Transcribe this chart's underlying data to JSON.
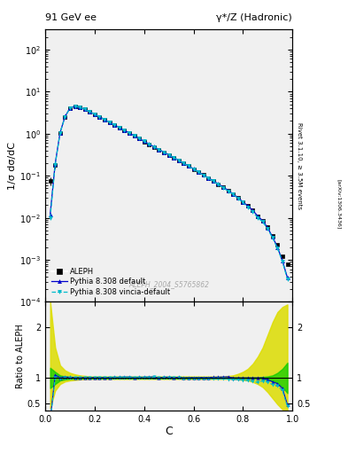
{
  "title_left": "91 GeV ee",
  "title_right": "γ*/Z (Hadronic)",
  "ylabel_main": "1/σ dσ/dC",
  "ylabel_ratio": "Ratio to ALEPH",
  "xlabel": "C",
  "right_label_main": "Rivet 3.1.10, ≥ 3.5M events",
  "right_label_ref": "[arXiv:1306.3436]",
  "watermark": "ALEPH_2004_S5765862",
  "legend": [
    "ALEPH",
    "Pythia 8.308 default",
    "Pythia 8.308 vincia-default"
  ],
  "aleph_x": [
    0.02,
    0.04,
    0.06,
    0.08,
    0.1,
    0.12,
    0.14,
    0.16,
    0.18,
    0.2,
    0.22,
    0.24,
    0.26,
    0.28,
    0.3,
    0.32,
    0.34,
    0.36,
    0.38,
    0.4,
    0.42,
    0.44,
    0.46,
    0.48,
    0.5,
    0.52,
    0.54,
    0.56,
    0.58,
    0.6,
    0.62,
    0.64,
    0.66,
    0.68,
    0.7,
    0.72,
    0.74,
    0.76,
    0.78,
    0.8,
    0.82,
    0.84,
    0.86,
    0.88,
    0.9,
    0.92,
    0.94,
    0.96,
    0.98
  ],
  "aleph_y": [
    0.075,
    0.18,
    1.05,
    2.5,
    4.0,
    4.5,
    4.2,
    3.8,
    3.3,
    2.9,
    2.5,
    2.15,
    1.85,
    1.6,
    1.38,
    1.18,
    1.02,
    0.88,
    0.76,
    0.65,
    0.56,
    0.48,
    0.42,
    0.36,
    0.31,
    0.27,
    0.23,
    0.2,
    0.17,
    0.145,
    0.123,
    0.104,
    0.088,
    0.075,
    0.063,
    0.053,
    0.044,
    0.037,
    0.03,
    0.024,
    0.019,
    0.015,
    0.011,
    0.0085,
    0.006,
    0.0038,
    0.00225,
    0.0012,
    0.0008
  ],
  "pythia_y": [
    0.012,
    0.19,
    1.06,
    2.55,
    4.05,
    4.52,
    4.22,
    3.82,
    3.32,
    2.92,
    2.52,
    2.17,
    1.87,
    1.62,
    1.4,
    1.2,
    1.04,
    0.89,
    0.77,
    0.66,
    0.57,
    0.49,
    0.42,
    0.365,
    0.315,
    0.272,
    0.233,
    0.2,
    0.171,
    0.146,
    0.124,
    0.105,
    0.089,
    0.076,
    0.064,
    0.054,
    0.045,
    0.037,
    0.03,
    0.024,
    0.019,
    0.015,
    0.011,
    0.0085,
    0.0058,
    0.0035,
    0.002,
    0.00095,
    0.00038
  ],
  "vincia_y": [
    0.01,
    0.18,
    1.04,
    2.52,
    4.02,
    4.5,
    4.2,
    3.8,
    3.3,
    2.9,
    2.5,
    2.16,
    1.86,
    1.61,
    1.39,
    1.19,
    1.03,
    0.885,
    0.765,
    0.655,
    0.565,
    0.487,
    0.418,
    0.362,
    0.312,
    0.269,
    0.231,
    0.198,
    0.169,
    0.144,
    0.122,
    0.103,
    0.087,
    0.074,
    0.062,
    0.052,
    0.043,
    0.036,
    0.029,
    0.023,
    0.018,
    0.014,
    0.01,
    0.008,
    0.0055,
    0.0033,
    0.0019,
    0.0009,
    0.00035
  ],
  "aleph_err": [
    0.015,
    0.03,
    0.05,
    0.1,
    0.12,
    0.12,
    0.11,
    0.1,
    0.08,
    0.07,
    0.06,
    0.05,
    0.04,
    0.035,
    0.03,
    0.025,
    0.02,
    0.017,
    0.015,
    0.013,
    0.011,
    0.009,
    0.008,
    0.007,
    0.006,
    0.005,
    0.004,
    0.0035,
    0.003,
    0.0025,
    0.002,
    0.0017,
    0.0014,
    0.0012,
    0.001,
    0.0008,
    0.0007,
    0.0006,
    0.0005,
    0.0004,
    0.0003,
    0.00025,
    0.0002,
    0.00015,
    0.00012,
    9e-05,
    7e-05,
    5e-05,
    4e-05
  ],
  "pythia_band_lo": [
    0.8,
    0.88,
    0.95,
    0.97,
    0.98,
    0.985,
    0.988,
    0.99,
    0.99,
    0.99,
    0.99,
    0.99,
    0.99,
    0.99,
    0.99,
    0.99,
    0.99,
    0.99,
    0.99,
    0.99,
    0.99,
    0.99,
    0.99,
    0.99,
    0.99,
    0.99,
    0.99,
    0.99,
    0.99,
    0.99,
    0.99,
    0.99,
    0.99,
    0.99,
    0.99,
    0.99,
    0.99,
    0.99,
    0.99,
    0.99,
    0.99,
    0.99,
    0.99,
    0.98,
    0.97,
    0.95,
    0.9,
    0.82,
    0.7
  ],
  "pythia_band_hi": [
    1.2,
    1.12,
    1.05,
    1.03,
    1.02,
    1.015,
    1.012,
    1.01,
    1.01,
    1.01,
    1.01,
    1.01,
    1.01,
    1.01,
    1.01,
    1.01,
    1.01,
    1.01,
    1.01,
    1.01,
    1.01,
    1.01,
    1.01,
    1.01,
    1.01,
    1.01,
    1.01,
    1.01,
    1.01,
    1.01,
    1.01,
    1.01,
    1.01,
    1.01,
    1.01,
    1.01,
    1.01,
    1.01,
    1.01,
    1.01,
    1.01,
    1.01,
    1.01,
    1.02,
    1.03,
    1.05,
    1.1,
    1.18,
    1.3
  ],
  "vincia_band_lo": [
    0.4,
    0.75,
    0.88,
    0.93,
    0.95,
    0.96,
    0.97,
    0.975,
    0.98,
    0.98,
    0.98,
    0.98,
    0.98,
    0.98,
    0.98,
    0.98,
    0.98,
    0.98,
    0.98,
    0.98,
    0.98,
    0.98,
    0.98,
    0.98,
    0.98,
    0.98,
    0.98,
    0.98,
    0.98,
    0.98,
    0.98,
    0.98,
    0.98,
    0.98,
    0.98,
    0.98,
    0.98,
    0.98,
    0.97,
    0.96,
    0.95,
    0.92,
    0.88,
    0.82,
    0.72,
    0.6,
    0.48,
    0.38,
    0.3
  ],
  "vincia_band_hi": [
    2.5,
    1.6,
    1.25,
    1.15,
    1.1,
    1.07,
    1.05,
    1.04,
    1.03,
    1.03,
    1.03,
    1.03,
    1.03,
    1.03,
    1.03,
    1.03,
    1.03,
    1.03,
    1.03,
    1.03,
    1.03,
    1.03,
    1.03,
    1.03,
    1.03,
    1.03,
    1.03,
    1.03,
    1.03,
    1.03,
    1.03,
    1.03,
    1.03,
    1.03,
    1.03,
    1.03,
    1.04,
    1.05,
    1.08,
    1.12,
    1.18,
    1.28,
    1.42,
    1.6,
    1.85,
    2.1,
    2.3,
    2.4,
    2.45
  ],
  "color_aleph": "#000000",
  "color_pythia": "#0000cc",
  "color_vincia": "#00bbcc",
  "color_pythia_band": "#00cc00",
  "color_vincia_band": "#dddd00",
  "bg_color": "#f0f0f0",
  "ylim_main": [
    0.0001,
    300
  ],
  "ylim_ratio": [
    0.35,
    2.5
  ],
  "xlim": [
    0.0,
    1.0
  ]
}
